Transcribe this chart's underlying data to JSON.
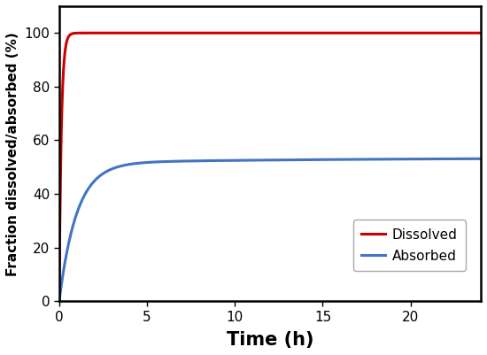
{
  "title": "",
  "xlabel": "Time (h)",
  "ylabel": "Fraction dissolved/absorbed (%)",
  "xlim": [
    0,
    24
  ],
  "ylim": [
    0,
    110
  ],
  "xticks": [
    0,
    5,
    10,
    15,
    20
  ],
  "yticks": [
    0,
    20,
    40,
    60,
    80,
    100
  ],
  "dissolved_color": "#cc0000",
  "absorbed_color": "#4472c4",
  "dissolved_label": "Dissolved",
  "absorbed_label": "Absorbed",
  "dissolved_plateau": 100.0,
  "dissolved_rate": 8.0,
  "absorbed_plateau": 51.5,
  "absorbed_rate": 1.0,
  "absorbed_slow_increase": 2.0,
  "absorbed_slow_rate": 0.07,
  "line_width": 2.2,
  "legend_fontsize": 11,
  "tick_fontsize": 11,
  "xlabel_fontsize": 15,
  "ylabel_fontsize": 11,
  "spine_linewidth": 1.8
}
